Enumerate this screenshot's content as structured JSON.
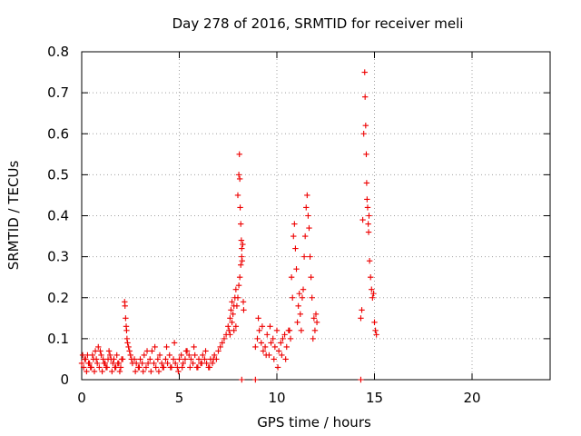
{
  "chart_data": {
    "type": "scatter",
    "title": "Day 278 of 2016, SRMTID for receiver meli",
    "xlabel": "GPS time / hours",
    "ylabel": "SRMTID / TECUs",
    "xlim": [
      0,
      24
    ],
    "ylim": [
      0,
      0.8
    ],
    "xticks": [
      "0",
      "5",
      "10",
      "15",
      "20"
    ],
    "yticks": [
      "0",
      "0.1",
      "0.2",
      "0.3",
      "0.4",
      "0.5",
      "0.6",
      "0.7",
      "0.8"
    ],
    "grid": true,
    "marker": "+",
    "color": "#ee0000",
    "series": [
      {
        "name": "",
        "x": [
          0.0,
          0.1,
          0.2,
          0.3,
          0.4,
          0.5,
          0.6,
          0.7,
          0.8,
          0.9,
          1.0,
          1.1,
          1.2,
          1.3,
          1.4,
          1.5,
          1.6,
          1.7,
          1.8,
          1.9,
          2.0,
          2.1,
          0.05,
          0.15,
          0.25,
          0.35,
          0.45,
          0.55,
          0.65,
          0.75,
          0.85,
          0.95,
          1.05,
          1.15,
          1.25,
          1.35,
          1.45,
          1.55,
          1.65,
          1.75,
          1.85,
          1.95,
          2.05,
          2.2,
          2.22,
          2.25,
          2.28,
          2.3,
          2.32,
          2.35,
          2.4,
          2.45,
          2.5,
          2.55,
          2.6,
          2.7,
          2.8,
          2.9,
          3.0,
          3.1,
          3.2,
          3.3,
          3.4,
          3.5,
          3.6,
          3.7,
          3.8,
          3.9,
          4.0,
          4.1,
          4.2,
          4.3,
          4.4,
          4.5,
          4.6,
          4.7,
          4.8,
          4.9,
          5.0,
          5.1,
          5.2,
          5.3,
          5.4,
          5.5,
          5.6,
          5.7,
          5.8,
          5.9,
          6.0,
          6.1,
          6.2,
          6.3,
          6.4,
          6.5,
          6.6,
          6.7,
          6.8,
          6.9,
          2.75,
          2.95,
          3.15,
          3.35,
          3.55,
          3.75,
          3.95,
          4.15,
          4.35,
          4.55,
          4.75,
          4.95,
          5.15,
          5.35,
          5.55,
          5.75,
          5.95,
          6.15,
          6.35,
          6.55,
          6.75,
          7.0,
          7.1,
          7.2,
          7.3,
          7.4,
          7.5,
          7.6,
          7.65,
          7.7,
          7.75,
          7.8,
          7.85,
          7.9,
          7.95,
          8.0,
          8.05,
          8.1,
          8.15,
          8.2,
          7.55,
          7.6,
          7.7,
          7.8,
          7.9,
          8.0,
          8.05,
          8.08,
          8.1,
          8.12,
          8.15,
          8.18,
          8.2,
          8.22,
          8.25,
          8.28,
          8.3,
          8.9,
          9.0,
          9.1,
          9.2,
          9.3,
          9.4,
          9.5,
          9.6,
          9.7,
          9.8,
          9.9,
          10.0,
          10.1,
          10.2,
          10.3,
          10.4,
          10.5,
          10.6,
          10.7,
          9.05,
          9.25,
          9.45,
          9.65,
          9.85,
          10.05,
          10.25,
          10.45,
          10.65,
          10.75,
          10.8,
          10.85,
          10.9,
          10.95,
          11.0,
          11.05,
          11.1,
          11.15,
          11.2,
          11.25,
          11.3,
          11.35,
          11.4,
          11.45,
          11.5,
          11.55,
          11.6,
          11.65,
          11.7,
          11.75,
          11.8,
          11.85,
          11.9,
          11.95,
          12.0,
          12.05,
          14.3,
          14.35,
          14.4,
          14.45,
          14.5,
          14.52,
          14.55,
          14.58,
          14.6,
          14.62,
          14.65,
          14.68,
          14.7,
          14.72,
          14.75,
          14.8,
          14.85,
          14.9,
          14.95,
          15.0,
          15.05,
          15.1,
          8.2,
          8.9,
          14.3
        ],
        "y": [
          0.04,
          0.03,
          0.05,
          0.06,
          0.04,
          0.03,
          0.05,
          0.07,
          0.04,
          0.03,
          0.06,
          0.05,
          0.04,
          0.03,
          0.07,
          0.05,
          0.04,
          0.03,
          0.06,
          0.04,
          0.03,
          0.05,
          0.06,
          0.05,
          0.02,
          0.04,
          0.03,
          0.06,
          0.02,
          0.05,
          0.08,
          0.07,
          0.02,
          0.04,
          0.03,
          0.05,
          0.06,
          0.02,
          0.05,
          0.03,
          0.04,
          0.02,
          0.05,
          0.19,
          0.18,
          0.15,
          0.13,
          0.12,
          0.1,
          0.09,
          0.08,
          0.07,
          0.06,
          0.05,
          0.04,
          0.05,
          0.04,
          0.03,
          0.05,
          0.04,
          0.06,
          0.03,
          0.04,
          0.05,
          0.07,
          0.04,
          0.03,
          0.05,
          0.06,
          0.04,
          0.03,
          0.05,
          0.04,
          0.06,
          0.03,
          0.05,
          0.04,
          0.03,
          0.05,
          0.06,
          0.04,
          0.05,
          0.07,
          0.06,
          0.05,
          0.04,
          0.06,
          0.03,
          0.05,
          0.04,
          0.06,
          0.05,
          0.04,
          0.03,
          0.05,
          0.04,
          0.06,
          0.05,
          0.02,
          0.03,
          0.02,
          0.07,
          0.02,
          0.08,
          0.02,
          0.03,
          0.08,
          0.03,
          0.09,
          0.02,
          0.03,
          0.07,
          0.03,
          0.08,
          0.03,
          0.04,
          0.07,
          0.03,
          0.05,
          0.07,
          0.08,
          0.09,
          0.1,
          0.11,
          0.13,
          0.15,
          0.17,
          0.19,
          0.16,
          0.18,
          0.2,
          0.22,
          0.18,
          0.2,
          0.23,
          0.25,
          0.28,
          0.3,
          0.12,
          0.11,
          0.14,
          0.12,
          0.13,
          0.45,
          0.5,
          0.55,
          0.49,
          0.42,
          0.38,
          0.34,
          0.32,
          0.29,
          0.33,
          0.19,
          0.17,
          0.08,
          0.1,
          0.12,
          0.09,
          0.07,
          0.08,
          0.11,
          0.06,
          0.09,
          0.1,
          0.08,
          0.12,
          0.07,
          0.09,
          0.1,
          0.11,
          0.08,
          0.12,
          0.1,
          0.15,
          0.13,
          0.06,
          0.13,
          0.05,
          0.03,
          0.06,
          0.05,
          0.12,
          0.25,
          0.2,
          0.35,
          0.38,
          0.32,
          0.27,
          0.14,
          0.18,
          0.21,
          0.16,
          0.12,
          0.2,
          0.22,
          0.3,
          0.35,
          0.42,
          0.45,
          0.4,
          0.37,
          0.3,
          0.25,
          0.2,
          0.1,
          0.15,
          0.12,
          0.16,
          0.14,
          0.15,
          0.17,
          0.39,
          0.6,
          0.75,
          0.69,
          0.62,
          0.55,
          0.48,
          0.44,
          0.42,
          0.38,
          0.36,
          0.4,
          0.29,
          0.25,
          0.22,
          0.2,
          0.21,
          0.14,
          0.12,
          0.11,
          0.0,
          0.0,
          0.0
        ]
      }
    ]
  }
}
